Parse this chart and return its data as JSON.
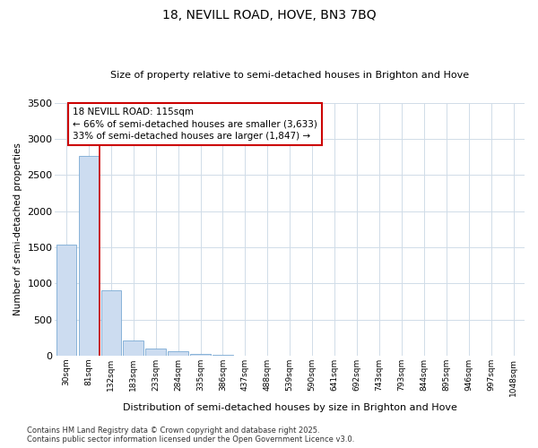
{
  "title": "18, NEVILL ROAD, HOVE, BN3 7BQ",
  "subtitle": "Size of property relative to semi-detached houses in Brighton and Hove",
  "xlabel": "Distribution of semi-detached houses by size in Brighton and Hove",
  "ylabel": "Number of semi-detached properties",
  "categories": [
    "30sqm",
    "81sqm",
    "132sqm",
    "183sqm",
    "233sqm",
    "284sqm",
    "335sqm",
    "386sqm",
    "437sqm",
    "488sqm",
    "539sqm",
    "590sqm",
    "641sqm",
    "692sqm",
    "743sqm",
    "793sqm",
    "844sqm",
    "895sqm",
    "946sqm",
    "997sqm",
    "1048sqm"
  ],
  "values": [
    1540,
    2760,
    900,
    215,
    100,
    55,
    20,
    5,
    0,
    0,
    0,
    0,
    0,
    0,
    0,
    0,
    0,
    0,
    0,
    0,
    0
  ],
  "bar_color": "#ccdcf0",
  "bar_edge_color": "#7aaad4",
  "vline_x": 1.5,
  "vline_color": "#cc0000",
  "annotation_text": "18 NEVILL ROAD: 115sqm\n← 66% of semi-detached houses are smaller (3,633)\n33% of semi-detached houses are larger (1,847) →",
  "annotation_box_color": "#cc0000",
  "ylim": [
    0,
    3500
  ],
  "yticks": [
    0,
    500,
    1000,
    1500,
    2000,
    2500,
    3000,
    3500
  ],
  "footer_line1": "Contains HM Land Registry data © Crown copyright and database right 2025.",
  "footer_line2": "Contains public sector information licensed under the Open Government Licence v3.0.",
  "background_color": "#ffffff",
  "plot_bg_color": "#ffffff",
  "grid_color": "#d0dce8"
}
